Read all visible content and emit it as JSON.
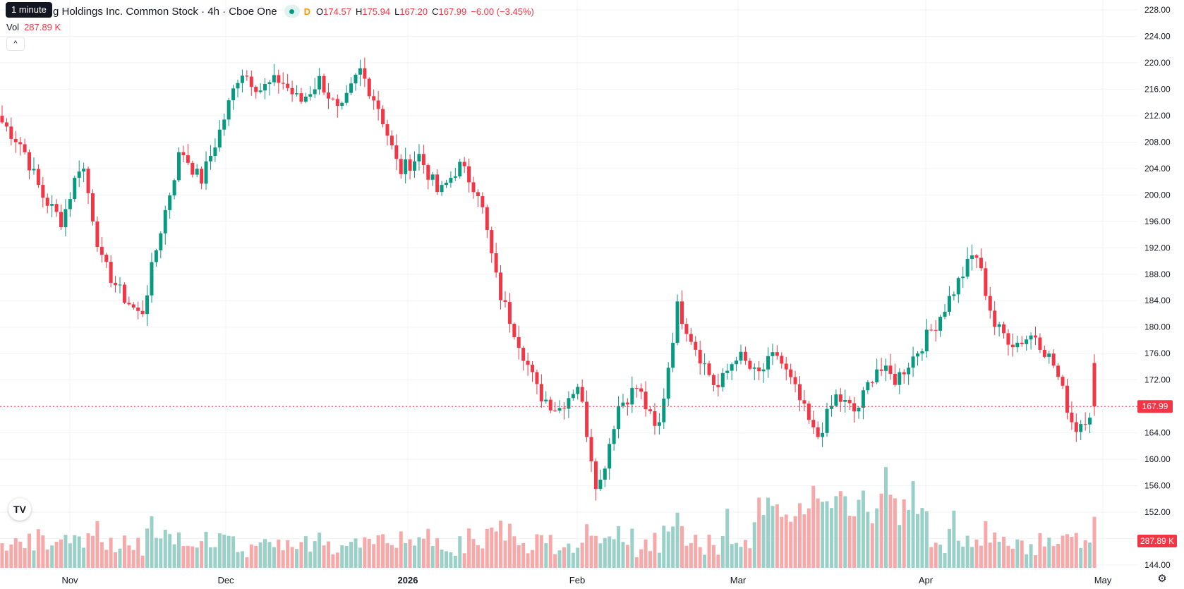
{
  "legend": {
    "title": "g Holdings Inc. Common Stock · 4h · Cboe One",
    "status_flag": "D",
    "open_key": "O",
    "open": "174.57",
    "high_key": "H",
    "high": "175.94",
    "low_key": "L",
    "low": "167.20",
    "close_key": "C",
    "close": "167.99",
    "change": "−6.00 (−3.45%)",
    "volume_key": "Vol",
    "volume": "287.89 K"
  },
  "tooltip": {
    "text": "1 minute"
  },
  "collapse_button": {
    "glyph": "^"
  },
  "logo": {
    "text": "TV"
  },
  "settings": {
    "icon": "gear-icon"
  },
  "price_label": {
    "text": "167.99",
    "color": "#f23645"
  },
  "volume_label": {
    "text": "287.89 K",
    "color": "#f23645"
  },
  "colors": {
    "up": "#089981",
    "down": "#f23645",
    "vol_up": "#9ad0c8",
    "vol_down": "#f7a9a9",
    "grid": "#f0f3fa"
  },
  "chart_data": {
    "type": "candlestick",
    "timeframe": "4h",
    "y_ticks": [
      "228.00",
      "224.00",
      "220.00",
      "216.00",
      "212.00",
      "208.00",
      "204.00",
      "200.00",
      "196.00",
      "192.00",
      "188.00",
      "184.00",
      "180.00",
      "176.00",
      "172.00",
      "168.00",
      "164.00",
      "160.00",
      "156.00",
      "152.00",
      "148.00",
      "144.00"
    ],
    "x_labels": [
      "Nov",
      "Dec",
      "2026",
      "Feb",
      "Mar",
      "Apr",
      "May"
    ],
    "ylim": [
      142.5,
      229.5
    ],
    "last_price": 167.99,
    "key_closes": [
      211.0,
      207.5,
      200.0,
      196.0,
      205.5,
      190.0,
      185.0,
      181.5,
      195.0,
      207.0,
      202.0,
      210.0,
      219.0,
      216.0,
      217.5,
      214.0,
      217.5,
      212.0,
      219.0,
      213.0,
      203.5,
      206.0,
      200.0,
      204.5,
      200.5,
      185.5,
      178.0,
      170.0,
      167.5,
      171.5,
      155.0,
      168.0,
      171.0,
      163.5,
      183.0,
      176.5,
      170.5,
      176.0,
      172.5,
      176.0,
      170.0,
      163.0,
      169.5,
      167.0,
      174.0,
      172.0,
      176.0,
      180.5,
      186.0,
      191.5,
      180.0,
      177.5,
      179.0,
      174.0,
      164.5,
      167.99
    ],
    "volume_last": "287.89K"
  }
}
